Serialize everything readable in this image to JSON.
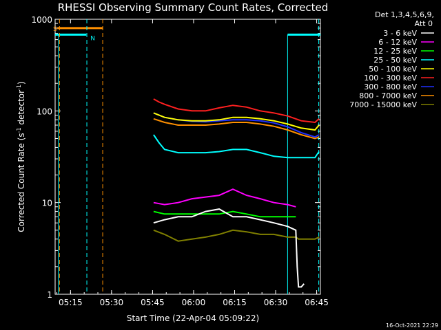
{
  "chart_data": {
    "type": "line",
    "title": "RHESSI Observing Summary Count Rates, Corrected",
    "xlabel": "Start Time (22-Apr-04 05:09:22)",
    "ylabel_main": "Corrected Count Rate (s",
    "ylabel_sup1": "-1",
    "ylabel_mid": " detector",
    "ylabel_sup2": "-1",
    "ylabel_end": ")",
    "yscale": "log",
    "ylim": [
      1,
      1000
    ],
    "xlim_minutes": [
      0,
      97
    ],
    "x_ticks": [
      {
        "label": "05:15",
        "min": 5.63
      },
      {
        "label": "05:30",
        "min": 20.63
      },
      {
        "label": "05:45",
        "min": 35.63
      },
      {
        "label": "06:00",
        "min": 50.63
      },
      {
        "label": "06:15",
        "min": 65.63
      },
      {
        "label": "06:30",
        "min": 80.63
      },
      {
        "label": "06:45",
        "min": 95.63
      }
    ],
    "y_ticks": [
      {
        "label": "1",
        "value": 1
      },
      {
        "label": "10",
        "value": 10
      },
      {
        "label": "100",
        "value": 100
      },
      {
        "label": "1000",
        "value": 1000
      }
    ],
    "legend": {
      "header1": "Det 1,3,4,5,6,9,",
      "header2": "Att 0",
      "placement": "right"
    },
    "series": [
      {
        "name": "3 - 6 keV",
        "color": "#ffffff",
        "x": [
          36,
          40,
          45,
          50,
          55,
          60,
          65,
          70,
          75,
          80,
          85,
          88,
          88.5,
          89,
          90,
          91
        ],
        "y": [
          6,
          6.5,
          7,
          7,
          8,
          8.5,
          7,
          7,
          6.5,
          6,
          5.5,
          5,
          2,
          1.2,
          1.2,
          1.3
        ]
      },
      {
        "name": "6 - 12 keV",
        "color": "#ff00ff",
        "x": [
          36,
          40,
          45,
          50,
          55,
          60,
          65,
          70,
          75,
          80,
          85,
          88
        ],
        "y": [
          10,
          9.5,
          10,
          11,
          11.5,
          12,
          14,
          12,
          11,
          10,
          9.5,
          9
        ]
      },
      {
        "name": "12 - 25 keV",
        "color": "#00ff00",
        "x": [
          36,
          40,
          45,
          50,
          55,
          60,
          65,
          70,
          75,
          80,
          85,
          88
        ],
        "y": [
          8,
          7.5,
          7.5,
          7.5,
          7.5,
          7.5,
          8,
          7.5,
          7,
          7,
          7,
          7
        ]
      },
      {
        "name": "25 - 50 keV",
        "color": "#00ffff",
        "x": [
          36,
          38,
          40,
          45,
          50,
          55,
          60,
          65,
          70,
          75,
          80,
          85,
          90,
          95,
          96.5
        ],
        "y": [
          55,
          45,
          38,
          35,
          35,
          35,
          36,
          38,
          38,
          35,
          32,
          31,
          31,
          31,
          36
        ]
      },
      {
        "name": "50 - 100 keV",
        "color": "#ffff00",
        "x": [
          36,
          40,
          45,
          50,
          55,
          60,
          65,
          70,
          75,
          80,
          85,
          90,
          95,
          96.5
        ],
        "y": [
          95,
          85,
          80,
          78,
          78,
          80,
          85,
          85,
          82,
          78,
          72,
          65,
          62,
          70
        ]
      },
      {
        "name": "100 - 300 keV",
        "color": "#ff2020",
        "x": [
          36,
          38,
          40,
          45,
          50,
          55,
          60,
          65,
          70,
          75,
          80,
          85,
          90,
          95,
          96.5
        ],
        "y": [
          135,
          125,
          118,
          105,
          100,
          100,
          108,
          115,
          110,
          100,
          95,
          88,
          78,
          75,
          82
        ]
      },
      {
        "name": "300 - 800 keV",
        "color": "#2030ff",
        "x": [
          36,
          40,
          45,
          50,
          55,
          60,
          65,
          70,
          75,
          80,
          85,
          90,
          95,
          96.5
        ],
        "y": [
          95,
          85,
          80,
          77,
          76,
          78,
          80,
          80,
          78,
          74,
          67,
          58,
          52,
          55
        ]
      },
      {
        "name": "800 - 7000 keV",
        "color": "#ff9000",
        "x": [
          36,
          40,
          45,
          50,
          55,
          60,
          65,
          70,
          75,
          80,
          85,
          90,
          95,
          96.5
        ],
        "y": [
          82,
          75,
          70,
          70,
          70,
          72,
          75,
          75,
          72,
          68,
          62,
          55,
          50,
          52
        ]
      },
      {
        "name": "7000 - 15000 keV",
        "color": "#808000",
        "x": [
          36,
          40,
          45,
          50,
          55,
          60,
          65,
          70,
          75,
          80,
          85,
          88,
          89,
          95,
          96.5
        ],
        "y": [
          5,
          4.5,
          3.8,
          4,
          4.2,
          4.5,
          5,
          4.8,
          4.5,
          4.5,
          4.2,
          4.2,
          4,
          4,
          4.2
        ]
      }
    ],
    "annotations": {
      "saa_label": "S",
      "night_label": "N",
      "saa_color": "#ff9000",
      "night_color": "#00ffff",
      "saa_interval_min": [
        0.8,
        17.3
      ],
      "saa_level": 800,
      "night_intervals_min": [
        [
          0,
          11.4
        ],
        [
          85,
          97
        ]
      ],
      "night_level": 680,
      "dashed_lines": [
        {
          "min": 1.6,
          "color": "#ff9000"
        },
        {
          "min": 11.6,
          "color": "#00ffff"
        },
        {
          "min": 17.4,
          "color": "#ff9000"
        },
        {
          "min": 96.4,
          "color": "#00ffff"
        }
      ],
      "solid_lines": [
        {
          "min": 1.2,
          "color": "#00ffff"
        },
        {
          "min": 85.0,
          "color": "#00ffff"
        }
      ]
    },
    "timestamp": "16-Oct-2021 22:29",
    "background": "#000000",
    "axis_color": "#ffffff"
  }
}
